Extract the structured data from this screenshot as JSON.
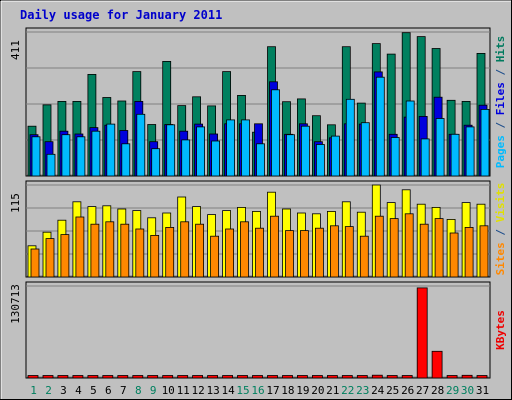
{
  "chart_data": {
    "type": "bar",
    "title": "Daily usage for January 2011",
    "categories": [
      "1",
      "2",
      "3",
      "4",
      "5",
      "6",
      "7",
      "8",
      "9",
      "10",
      "11",
      "12",
      "13",
      "14",
      "15",
      "16",
      "17",
      "18",
      "19",
      "20",
      "21",
      "22",
      "23",
      "24",
      "25",
      "26",
      "27",
      "28",
      "29",
      "30",
      "31"
    ],
    "weekend_days": [
      "1",
      "2",
      "8",
      "9",
      "15",
      "16",
      "22",
      "23",
      "29",
      "30"
    ],
    "panels": [
      {
        "id": "hits",
        "ymax": 411,
        "ymax_label": "411",
        "right_label": {
          "parts": [
            {
              "text": "Pages",
              "color": "#00bbff"
            },
            {
              "text": " / ",
              "color": "#1b4c8a"
            },
            {
              "text": "Files",
              "color": "#0000dd"
            },
            {
              "text": " / ",
              "color": "#1b4c8a"
            },
            {
              "text": "Hits",
              "color": "#007a5e"
            }
          ]
        },
        "series": [
          {
            "name": "Hits",
            "color": "#00805f",
            "values": [
              142,
              203,
              213,
              213,
              290,
              224,
              214,
              298,
              147,
              327,
              201,
              226,
              200,
              298,
              230,
              125,
              369,
              212,
              220,
              172,
              146,
              369,
              208,
              378,
              348,
              409,
              398,
              364,
              216,
              213,
              350
            ]
          },
          {
            "name": "Files",
            "color": "#0000dd",
            "values": [
              118,
              98,
              128,
              120,
              138,
              145,
              130,
              213,
              98,
              147,
              128,
              148,
              120,
              149,
              149,
              149,
              269,
              119,
              149,
              98,
              109,
              149,
              148,
              297,
              119,
              168,
              170,
              225,
              119,
              145,
              202
            ]
          },
          {
            "name": "Pages",
            "color": "#00bbff",
            "values": [
              112,
              62,
              118,
              112,
              128,
              148,
              92,
              176,
              78,
              146,
              103,
              140,
              100,
              160,
              160,
              92,
              246,
              118,
              142,
              90,
              114,
              219,
              152,
              282,
              110,
              214,
              106,
              164,
              119,
              140,
              190
            ]
          }
        ]
      },
      {
        "id": "visits",
        "ymax": 115,
        "ymax_label": "115",
        "right_label": {
          "parts": [
            {
              "text": "Sites",
              "color": "#ff8800"
            },
            {
              "text": " / ",
              "color": "#1b4c8a"
            },
            {
              "text": "Visits",
              "color": "#e0e000"
            }
          ]
        },
        "series": [
          {
            "name": "Visits",
            "color": "#ffff00",
            "values": [
              39,
              56,
              71,
              94,
              88,
              89,
              85,
              83,
              74,
              80,
              100,
              88,
              78,
              83,
              87,
              82,
              106,
              85,
              80,
              79,
              82,
              94,
              81,
              115,
              93,
              109,
              91,
              87,
              72,
              93,
              91
            ]
          },
          {
            "name": "Sites",
            "color": "#ff8800",
            "values": [
              35,
              48,
              53,
              75,
              66,
              69,
              66,
              60,
              52,
              62,
              69,
              66,
              51,
              60,
              69,
              61,
              76,
              58,
              58,
              61,
              64,
              63,
              51,
              76,
              73,
              79,
              66,
              73,
              55,
              62,
              64
            ]
          }
        ]
      },
      {
        "id": "kbytes",
        "ymax": 130713,
        "ymax_label": "130713",
        "right_label": {
          "parts": [
            {
              "text": "KBytes",
              "color": "#ee0000"
            }
          ]
        },
        "series": [
          {
            "name": "KBytes",
            "color": "#ff0000",
            "values": [
              2500,
              1800,
              3600,
              2800,
              2900,
              2600,
              2700,
              2700,
              2300,
              3100,
              2500,
              2800,
              2000,
              3000,
              2900,
              2700,
              3200,
              2800,
              2900,
              2400,
              2500,
              3200,
              3100,
              4000,
              3500,
              2800,
              128000,
              38000,
              2500,
              3800,
              3100
            ]
          }
        ]
      }
    ]
  }
}
